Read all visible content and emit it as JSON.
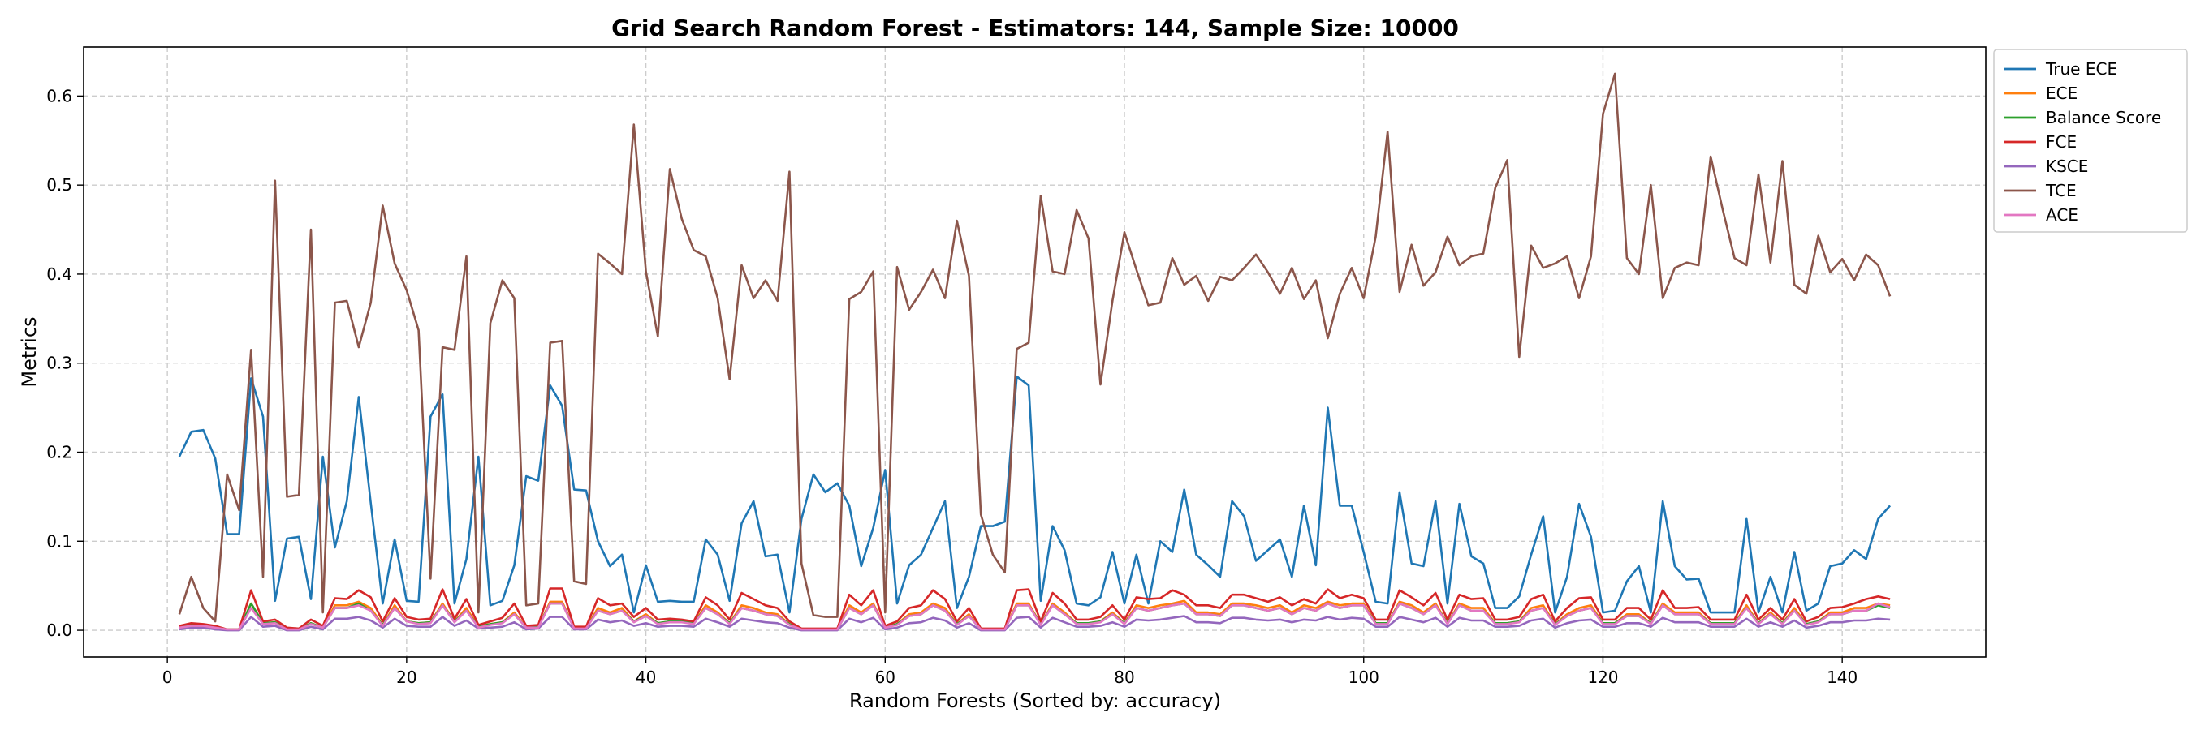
{
  "chart_data": {
    "type": "line",
    "title": "Grid Search Random Forest - Estimators: 144, Sample Size: 10000",
    "xlabel": "Random Forests (Sorted by: accuracy)",
    "ylabel": "Metrics",
    "xlim": [
      -7,
      152
    ],
    "ylim": [
      -0.03,
      0.655
    ],
    "xticks": [
      0,
      20,
      40,
      60,
      80,
      100,
      120,
      140
    ],
    "xtick_labels": [
      "0",
      "20",
      "40",
      "60",
      "80",
      "100",
      "120",
      "140"
    ],
    "yticks": [
      0.0,
      0.1,
      0.2,
      0.3,
      0.4,
      0.5,
      0.6
    ],
    "ytick_labels": [
      "0.0",
      "0.1",
      "0.2",
      "0.3",
      "0.4",
      "0.5",
      "0.6"
    ],
    "grid": true,
    "legend_position": "outside-right-top",
    "x": [
      1,
      2,
      3,
      4,
      5,
      6,
      7,
      8,
      9,
      10,
      11,
      12,
      13,
      14,
      15,
      16,
      17,
      18,
      19,
      20,
      21,
      22,
      23,
      24,
      25,
      26,
      27,
      28,
      29,
      30,
      31,
      32,
      33,
      34,
      35,
      36,
      37,
      38,
      39,
      40,
      41,
      42,
      43,
      44,
      45,
      46,
      47,
      48,
      49,
      50,
      51,
      52,
      53,
      54,
      55,
      56,
      57,
      58,
      59,
      60,
      61,
      62,
      63,
      64,
      65,
      66,
      67,
      68,
      69,
      70,
      71,
      72,
      73,
      74,
      75,
      76,
      77,
      78,
      79,
      80,
      81,
      82,
      83,
      84,
      85,
      86,
      87,
      88,
      89,
      90,
      91,
      92,
      93,
      94,
      95,
      96,
      97,
      98,
      99,
      100,
      101,
      102,
      103,
      104,
      105,
      106,
      107,
      108,
      109,
      110,
      111,
      112,
      113,
      114,
      115,
      116,
      117,
      118,
      119,
      120,
      121,
      122,
      123,
      124,
      125,
      126,
      127,
      128,
      129,
      130,
      131,
      132,
      133,
      134,
      135,
      136,
      137,
      138,
      139,
      140,
      141,
      142,
      143,
      144
    ],
    "series": [
      {
        "name": "True ECE",
        "color": "#1f77b4",
        "values": [
          0.195,
          0.223,
          0.225,
          0.193,
          0.108,
          0.108,
          0.283,
          0.24,
          0.033,
          0.103,
          0.105,
          0.035,
          0.195,
          0.093,
          0.145,
          0.262,
          0.143,
          0.03,
          0.102,
          0.033,
          0.032,
          0.24,
          0.265,
          0.03,
          0.08,
          0.195,
          0.028,
          0.033,
          0.073,
          0.173,
          0.168,
          0.275,
          0.252,
          0.158,
          0.157,
          0.1,
          0.072,
          0.085,
          0.02,
          0.073,
          0.032,
          0.033,
          0.032,
          0.032,
          0.102,
          0.085,
          0.033,
          0.12,
          0.145,
          0.083,
          0.085,
          0.02,
          0.125,
          0.175,
          0.155,
          0.165,
          0.14,
          0.072,
          0.115,
          0.18,
          0.03,
          0.073,
          0.085,
          0.115,
          0.145,
          0.025,
          0.06,
          0.117,
          0.117,
          0.122,
          0.285,
          0.275,
          0.033,
          0.117,
          0.09,
          0.03,
          0.028,
          0.037,
          0.088,
          0.03,
          0.085,
          0.03,
          0.1,
          0.088,
          0.158,
          0.085,
          0.073,
          0.06,
          0.145,
          0.128,
          0.078,
          0.09,
          0.102,
          0.06,
          0.14,
          0.073,
          0.25,
          0.14,
          0.14,
          0.088,
          0.032,
          0.03,
          0.155,
          0.075,
          0.072,
          0.145,
          0.03,
          0.142,
          0.083,
          0.075,
          0.025,
          0.025,
          0.038,
          0.085,
          0.128,
          0.02,
          0.06,
          0.142,
          0.105,
          0.02,
          0.022,
          0.055,
          0.072,
          0.02,
          0.145,
          0.072,
          0.057,
          0.058,
          0.02,
          0.02,
          0.02,
          0.125,
          0.02,
          0.06,
          0.02,
          0.088,
          0.022,
          0.03,
          0.072,
          0.075,
          0.09,
          0.08,
          0.125,
          0.14
        ]
      },
      {
        "name": "ECE",
        "color": "#ff7f0e",
        "values": [
          0.002,
          0.005,
          0.006,
          0.003,
          0.001,
          0.001,
          0.03,
          0.008,
          0.009,
          0.001,
          0.001,
          0.008,
          0.003,
          0.028,
          0.028,
          0.032,
          0.025,
          0.006,
          0.028,
          0.01,
          0.008,
          0.009,
          0.03,
          0.01,
          0.025,
          0.004,
          0.007,
          0.009,
          0.02,
          0.003,
          0.004,
          0.032,
          0.032,
          0.003,
          0.003,
          0.025,
          0.02,
          0.025,
          0.01,
          0.018,
          0.008,
          0.01,
          0.01,
          0.008,
          0.028,
          0.02,
          0.008,
          0.028,
          0.025,
          0.02,
          0.018,
          0.007,
          0.001,
          0.001,
          0.001,
          0.001,
          0.028,
          0.02,
          0.03,
          0.003,
          0.007,
          0.018,
          0.02,
          0.03,
          0.025,
          0.007,
          0.018,
          0.001,
          0.001,
          0.001,
          0.03,
          0.03,
          0.007,
          0.03,
          0.02,
          0.008,
          0.008,
          0.01,
          0.02,
          0.008,
          0.028,
          0.025,
          0.028,
          0.03,
          0.033,
          0.02,
          0.02,
          0.018,
          0.03,
          0.03,
          0.028,
          0.025,
          0.028,
          0.02,
          0.028,
          0.025,
          0.032,
          0.028,
          0.03,
          0.03,
          0.008,
          0.008,
          0.032,
          0.028,
          0.02,
          0.03,
          0.008,
          0.03,
          0.025,
          0.025,
          0.008,
          0.008,
          0.01,
          0.025,
          0.028,
          0.007,
          0.018,
          0.025,
          0.028,
          0.008,
          0.008,
          0.018,
          0.018,
          0.008,
          0.03,
          0.02,
          0.02,
          0.02,
          0.008,
          0.008,
          0.008,
          0.028,
          0.008,
          0.02,
          0.008,
          0.025,
          0.007,
          0.01,
          0.02,
          0.02,
          0.025,
          0.025,
          0.03,
          0.028
        ]
      },
      {
        "name": "Balance Score",
        "color": "#2ca02c",
        "values": [
          0.003,
          0.006,
          0.006,
          0.003,
          0.001,
          0.001,
          0.03,
          0.008,
          0.009,
          0.001,
          0.001,
          0.008,
          0.003,
          0.025,
          0.025,
          0.03,
          0.022,
          0.006,
          0.025,
          0.01,
          0.008,
          0.009,
          0.028,
          0.01,
          0.022,
          0.004,
          0.007,
          0.009,
          0.018,
          0.003,
          0.004,
          0.03,
          0.03,
          0.003,
          0.003,
          0.022,
          0.018,
          0.022,
          0.01,
          0.016,
          0.008,
          0.01,
          0.01,
          0.008,
          0.025,
          0.018,
          0.008,
          0.025,
          0.022,
          0.018,
          0.016,
          0.007,
          0.001,
          0.001,
          0.001,
          0.001,
          0.025,
          0.018,
          0.028,
          0.003,
          0.007,
          0.016,
          0.018,
          0.028,
          0.022,
          0.007,
          0.016,
          0.001,
          0.001,
          0.001,
          0.028,
          0.028,
          0.007,
          0.028,
          0.018,
          0.008,
          0.008,
          0.01,
          0.018,
          0.008,
          0.025,
          0.022,
          0.025,
          0.028,
          0.03,
          0.018,
          0.018,
          0.016,
          0.028,
          0.028,
          0.025,
          0.022,
          0.025,
          0.018,
          0.025,
          0.022,
          0.03,
          0.025,
          0.028,
          0.028,
          0.008,
          0.008,
          0.03,
          0.025,
          0.018,
          0.028,
          0.008,
          0.028,
          0.022,
          0.022,
          0.008,
          0.008,
          0.01,
          0.022,
          0.025,
          0.007,
          0.016,
          0.022,
          0.025,
          0.008,
          0.008,
          0.016,
          0.016,
          0.008,
          0.028,
          0.018,
          0.018,
          0.018,
          0.008,
          0.008,
          0.008,
          0.025,
          0.008,
          0.018,
          0.008,
          0.022,
          0.007,
          0.01,
          0.018,
          0.018,
          0.022,
          0.022,
          0.028,
          0.025
        ]
      },
      {
        "name": "FCE",
        "color": "#d62728",
        "values": [
          0.005,
          0.008,
          0.007,
          0.005,
          0.001,
          0.001,
          0.045,
          0.01,
          0.012,
          0.003,
          0.002,
          0.012,
          0.005,
          0.036,
          0.035,
          0.045,
          0.037,
          0.01,
          0.036,
          0.015,
          0.012,
          0.013,
          0.046,
          0.013,
          0.035,
          0.006,
          0.01,
          0.014,
          0.03,
          0.005,
          0.006,
          0.047,
          0.047,
          0.004,
          0.004,
          0.036,
          0.028,
          0.03,
          0.015,
          0.025,
          0.012,
          0.013,
          0.012,
          0.01,
          0.037,
          0.028,
          0.012,
          0.042,
          0.035,
          0.028,
          0.025,
          0.01,
          0.002,
          0.002,
          0.002,
          0.002,
          0.04,
          0.028,
          0.045,
          0.005,
          0.01,
          0.025,
          0.028,
          0.045,
          0.035,
          0.01,
          0.025,
          0.002,
          0.002,
          0.002,
          0.045,
          0.046,
          0.01,
          0.042,
          0.03,
          0.012,
          0.012,
          0.015,
          0.028,
          0.012,
          0.037,
          0.035,
          0.036,
          0.045,
          0.04,
          0.028,
          0.028,
          0.025,
          0.04,
          0.04,
          0.036,
          0.032,
          0.037,
          0.028,
          0.035,
          0.03,
          0.046,
          0.036,
          0.04,
          0.036,
          0.012,
          0.012,
          0.045,
          0.037,
          0.028,
          0.042,
          0.012,
          0.04,
          0.035,
          0.036,
          0.012,
          0.012,
          0.015,
          0.035,
          0.04,
          0.01,
          0.025,
          0.036,
          0.037,
          0.012,
          0.012,
          0.025,
          0.025,
          0.012,
          0.045,
          0.025,
          0.025,
          0.026,
          0.012,
          0.012,
          0.012,
          0.04,
          0.012,
          0.025,
          0.012,
          0.035,
          0.01,
          0.015,
          0.025,
          0.026,
          0.03,
          0.035,
          0.038,
          0.035
        ]
      },
      {
        "name": "KSCE",
        "color": "#9467bd",
        "values": [
          0.001,
          0.003,
          0.003,
          0.001,
          0.0,
          0.0,
          0.015,
          0.004,
          0.005,
          0.0,
          0.0,
          0.004,
          0.001,
          0.013,
          0.013,
          0.015,
          0.011,
          0.003,
          0.013,
          0.005,
          0.004,
          0.004,
          0.015,
          0.005,
          0.011,
          0.002,
          0.003,
          0.004,
          0.009,
          0.001,
          0.002,
          0.015,
          0.015,
          0.001,
          0.001,
          0.012,
          0.009,
          0.011,
          0.005,
          0.008,
          0.004,
          0.005,
          0.005,
          0.004,
          0.013,
          0.009,
          0.004,
          0.013,
          0.011,
          0.009,
          0.008,
          0.003,
          0.0,
          0.0,
          0.0,
          0.0,
          0.013,
          0.009,
          0.014,
          0.001,
          0.003,
          0.008,
          0.009,
          0.014,
          0.011,
          0.003,
          0.008,
          0.0,
          0.0,
          0.0,
          0.014,
          0.015,
          0.003,
          0.014,
          0.009,
          0.004,
          0.004,
          0.005,
          0.009,
          0.004,
          0.012,
          0.011,
          0.012,
          0.014,
          0.016,
          0.009,
          0.009,
          0.008,
          0.014,
          0.014,
          0.012,
          0.011,
          0.012,
          0.009,
          0.012,
          0.011,
          0.015,
          0.012,
          0.014,
          0.013,
          0.004,
          0.004,
          0.015,
          0.012,
          0.009,
          0.014,
          0.004,
          0.014,
          0.011,
          0.011,
          0.004,
          0.004,
          0.005,
          0.011,
          0.013,
          0.003,
          0.008,
          0.011,
          0.012,
          0.004,
          0.004,
          0.008,
          0.008,
          0.004,
          0.014,
          0.009,
          0.009,
          0.009,
          0.004,
          0.004,
          0.004,
          0.013,
          0.004,
          0.009,
          0.004,
          0.011,
          0.003,
          0.005,
          0.009,
          0.009,
          0.011,
          0.011,
          0.013,
          0.012
        ]
      },
      {
        "name": "TCE",
        "color": "#8c564b",
        "values": [
          0.018,
          0.06,
          0.025,
          0.01,
          0.175,
          0.135,
          0.315,
          0.06,
          0.505,
          0.15,
          0.152,
          0.45,
          0.02,
          0.368,
          0.37,
          0.318,
          0.368,
          0.477,
          0.412,
          0.382,
          0.337,
          0.058,
          0.318,
          0.315,
          0.42,
          0.02,
          0.345,
          0.393,
          0.373,
          0.028,
          0.03,
          0.323,
          0.325,
          0.055,
          0.052,
          0.423,
          0.412,
          0.4,
          0.568,
          0.403,
          0.33,
          0.518,
          0.462,
          0.427,
          0.42,
          0.373,
          0.282,
          0.41,
          0.373,
          0.393,
          0.37,
          0.515,
          0.075,
          0.017,
          0.015,
          0.015,
          0.372,
          0.38,
          0.403,
          0.02,
          0.408,
          0.36,
          0.38,
          0.405,
          0.373,
          0.46,
          0.398,
          0.13,
          0.085,
          0.065,
          0.316,
          0.323,
          0.488,
          0.403,
          0.4,
          0.472,
          0.44,
          0.276,
          0.37,
          0.447,
          0.405,
          0.365,
          0.368,
          0.418,
          0.388,
          0.398,
          0.37,
          0.397,
          0.393,
          0.407,
          0.422,
          0.402,
          0.378,
          0.407,
          0.372,
          0.393,
          0.328,
          0.378,
          0.407,
          0.373,
          0.442,
          0.56,
          0.38,
          0.433,
          0.387,
          0.402,
          0.442,
          0.41,
          0.42,
          0.423,
          0.497,
          0.528,
          0.307,
          0.432,
          0.407,
          0.412,
          0.42,
          0.373,
          0.42,
          0.58,
          0.625,
          0.418,
          0.4,
          0.5,
          0.373,
          0.407,
          0.413,
          0.41,
          0.532,
          0.473,
          0.418,
          0.41,
          0.512,
          0.413,
          0.527,
          0.388,
          0.378,
          0.443,
          0.402,
          0.417,
          0.393,
          0.422,
          0.41,
          0.375
        ]
      },
      {
        "name": "ACE",
        "color": "#e377c2",
        "values": [
          0.003,
          0.005,
          0.005,
          0.003,
          0.001,
          0.001,
          0.025,
          0.007,
          0.008,
          0.001,
          0.001,
          0.007,
          0.003,
          0.025,
          0.025,
          0.028,
          0.022,
          0.005,
          0.025,
          0.01,
          0.007,
          0.008,
          0.028,
          0.009,
          0.022,
          0.003,
          0.006,
          0.008,
          0.018,
          0.003,
          0.003,
          0.03,
          0.03,
          0.002,
          0.002,
          0.022,
          0.018,
          0.022,
          0.009,
          0.016,
          0.007,
          0.009,
          0.009,
          0.007,
          0.025,
          0.018,
          0.007,
          0.025,
          0.022,
          0.018,
          0.016,
          0.006,
          0.001,
          0.001,
          0.001,
          0.001,
          0.025,
          0.018,
          0.028,
          0.003,
          0.006,
          0.016,
          0.018,
          0.028,
          0.022,
          0.006,
          0.016,
          0.001,
          0.001,
          0.001,
          0.028,
          0.028,
          0.006,
          0.028,
          0.018,
          0.007,
          0.007,
          0.009,
          0.018,
          0.007,
          0.025,
          0.022,
          0.025,
          0.028,
          0.03,
          0.018,
          0.018,
          0.016,
          0.028,
          0.028,
          0.025,
          0.022,
          0.025,
          0.018,
          0.025,
          0.022,
          0.03,
          0.025,
          0.028,
          0.028,
          0.007,
          0.007,
          0.03,
          0.025,
          0.018,
          0.028,
          0.007,
          0.028,
          0.022,
          0.022,
          0.007,
          0.007,
          0.009,
          0.022,
          0.025,
          0.006,
          0.016,
          0.022,
          0.025,
          0.007,
          0.007,
          0.016,
          0.016,
          0.007,
          0.028,
          0.018,
          0.018,
          0.018,
          0.007,
          0.007,
          0.007,
          0.025,
          0.007,
          0.018,
          0.007,
          0.022,
          0.006,
          0.009,
          0.018,
          0.018,
          0.022,
          0.022,
          0.03,
          0.026
        ]
      }
    ]
  }
}
